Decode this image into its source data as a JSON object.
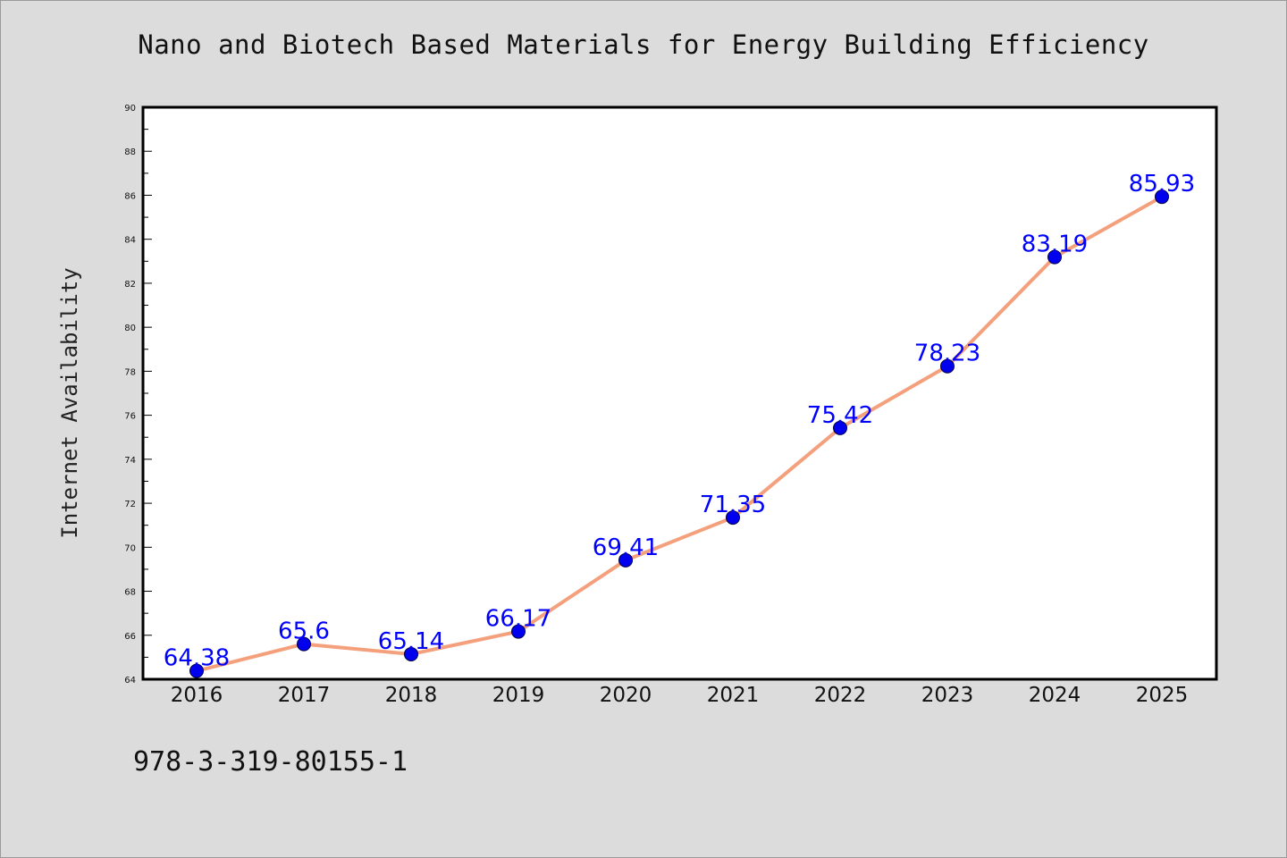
{
  "chart_data": {
    "type": "line",
    "title": "Nano and Biotech Based Materials for Energy Building Efficiency",
    "ylabel": "Internet Availability",
    "xlabel": "",
    "x": [
      "2016",
      "2017",
      "2018",
      "2019",
      "2020",
      "2021",
      "2022",
      "2023",
      "2024",
      "2025"
    ],
    "values": [
      64.38,
      65.6,
      65.14,
      66.17,
      69.41,
      71.35,
      75.42,
      78.23,
      83.19,
      85.93
    ],
    "data_labels": [
      "64.38",
      "65.6",
      "65.14",
      "66.17",
      "69.41",
      "71.35",
      "75.42",
      "78.23",
      "83.19",
      "85.93"
    ],
    "ylim": [
      64,
      90
    ],
    "yticks": [
      64,
      66,
      68,
      70,
      72,
      74,
      76,
      78,
      80,
      82,
      84,
      86,
      88,
      90
    ],
    "grid": false,
    "legend": "none",
    "colors": {
      "line": "#f4a07c",
      "marker": "#0000ee",
      "label": "#0000ff",
      "background": "#dcdcdc",
      "plot_area": "#ffffff"
    }
  },
  "footer_note": "978-3-319-80155-1"
}
